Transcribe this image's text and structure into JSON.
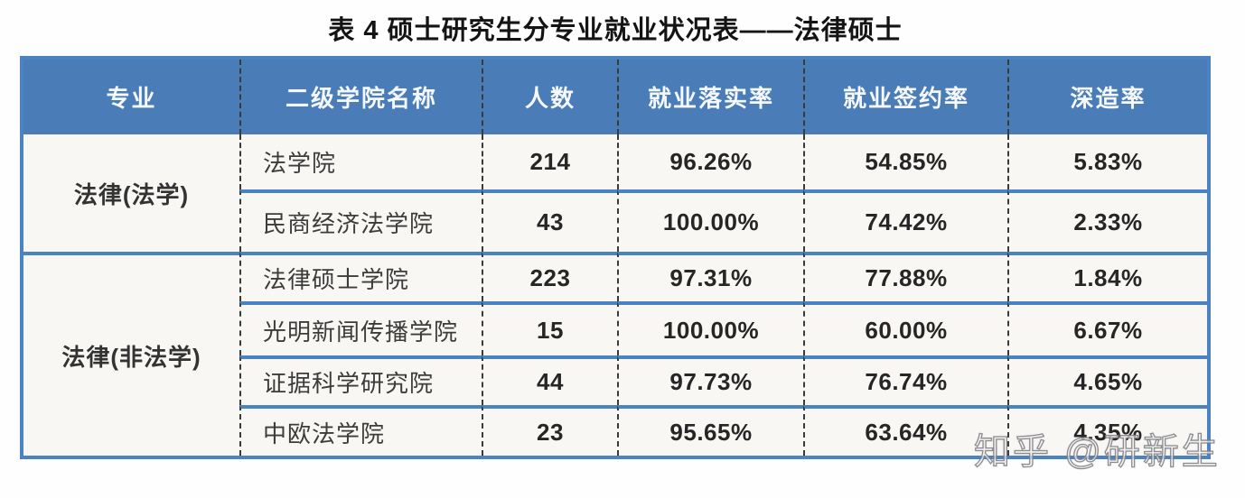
{
  "title": "表 4 硕士研究生分专业就业状况表——法律硕士",
  "table": {
    "headers": [
      "专业",
      "二级学院名称",
      "人数",
      "就业落实率",
      "就业签约率",
      "深造率"
    ],
    "groups": [
      {
        "major": "法律(法学)",
        "rows": [
          {
            "college": "法学院",
            "count": "214",
            "placement_rate": "96.26%",
            "contract_rate": "54.85%",
            "further_study_rate": "5.83%"
          },
          {
            "college": "民商经济法学院",
            "count": "43",
            "placement_rate": "100.00%",
            "contract_rate": "74.42%",
            "further_study_rate": "2.33%"
          }
        ]
      },
      {
        "major": "法律(非法学)",
        "rows": [
          {
            "college": "法律硕士学院",
            "count": "223",
            "placement_rate": "97.31%",
            "contract_rate": "77.88%",
            "further_study_rate": "1.84%"
          },
          {
            "college": "光明新闻传播学院",
            "count": "15",
            "placement_rate": "100.00%",
            "contract_rate": "60.00%",
            "further_study_rate": "6.67%"
          },
          {
            "college": "证据科学研究院",
            "count": "44",
            "placement_rate": "97.73%",
            "contract_rate": "76.74%",
            "further_study_rate": "4.65%"
          },
          {
            "college": "中欧法学院",
            "count": "23",
            "placement_rate": "95.65%",
            "contract_rate": "63.64%",
            "further_study_rate": "4.35%"
          }
        ]
      }
    ]
  },
  "watermark": "知乎 @研新生",
  "colors": {
    "header_bg": "#4a7cb7",
    "grid_line_blue": "#4a82c2",
    "cell_bg": "#f8f7f4",
    "dash_separator": "#3a3a3a"
  }
}
